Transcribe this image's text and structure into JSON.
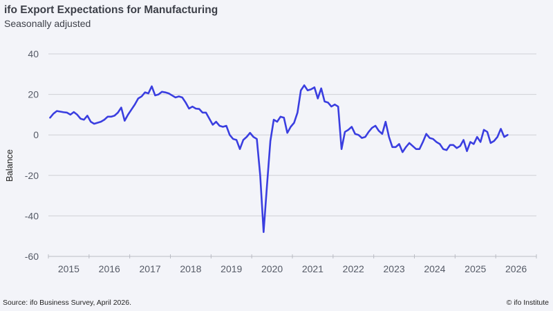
{
  "header": {
    "title": "ifo Export Expectations for Manufacturing",
    "subtitle": "Seasonally adjusted"
  },
  "footer": {
    "source": "Source:  ifo Business Survey, April 2026.",
    "copyright": "© ifo Institute"
  },
  "colors": {
    "line": "#3a3ee0",
    "grid": "#cfd0d6",
    "background": "#f3f4f9"
  },
  "chart_data": {
    "type": "line",
    "title": "ifo Export Expectations for Manufacturing",
    "subtitle": "Seasonally adjusted",
    "xlabel": "",
    "ylabel": "Balance",
    "ylim": [
      -60,
      40
    ],
    "yticks": [
      40,
      20,
      0,
      -20,
      -40,
      -60
    ],
    "xlim": [
      "2015-01",
      "2026-12"
    ],
    "xticks": [
      "2015",
      "2016",
      "2017",
      "2018",
      "2019",
      "2020",
      "2021",
      "2022",
      "2023",
      "2024",
      "2025",
      "2026"
    ],
    "grid": true,
    "legend": "none",
    "series": [
      {
        "name": "Export Expectations",
        "start": "2015-01",
        "frequency": "monthly",
        "values": [
          8.5,
          10.5,
          11.8,
          11.5,
          11.2,
          11.0,
          10.0,
          11.3,
          10.0,
          8.0,
          7.5,
          9.5,
          6.5,
          5.5,
          6.0,
          6.5,
          7.5,
          9.0,
          9.0,
          9.5,
          11.0,
          13.5,
          7.0,
          10.0,
          12.5,
          15.0,
          18.0,
          19.0,
          21.0,
          20.5,
          24.0,
          19.5,
          20.0,
          21.3,
          21.0,
          20.5,
          19.5,
          18.5,
          19.0,
          18.5,
          16.0,
          13.0,
          14.0,
          13.0,
          12.8,
          11.0,
          11.0,
          8.0,
          5.0,
          6.5,
          4.5,
          4.0,
          4.5,
          0.0,
          -2.0,
          -2.5,
          -7.0,
          -2.5,
          -1.0,
          1.0,
          -1.0,
          -2.0,
          -20.0,
          -48.0,
          -25.0,
          -3.0,
          7.5,
          6.5,
          9.0,
          8.5,
          1.0,
          4.0,
          6.0,
          11.0,
          22.0,
          24.5,
          22.0,
          22.5,
          23.5,
          18.0,
          23.0,
          16.5,
          16.0,
          14.0,
          15.0,
          14.0,
          -7.0,
          1.5,
          2.5,
          4.0,
          0.5,
          0.0,
          -1.5,
          -1.0,
          1.5,
          3.5,
          4.5,
          2.0,
          0.5,
          6.5,
          -1.0,
          -6.0,
          -6.0,
          -4.5,
          -8.5,
          -6.0,
          -4.0,
          -5.5,
          -7.0,
          -7.0,
          -3.5,
          0.5,
          -1.5,
          -2.0,
          -3.5,
          -4.5,
          -7.0,
          -7.5,
          -5.0,
          -5.0,
          -6.5,
          -5.5,
          -2.5,
          -8.0,
          -3.5,
          -4.5,
          -1.0,
          -3.5,
          2.5,
          1.5,
          -4.0,
          -3.0,
          -1.0,
          3.0,
          -1.0,
          0.0
        ]
      }
    ]
  }
}
